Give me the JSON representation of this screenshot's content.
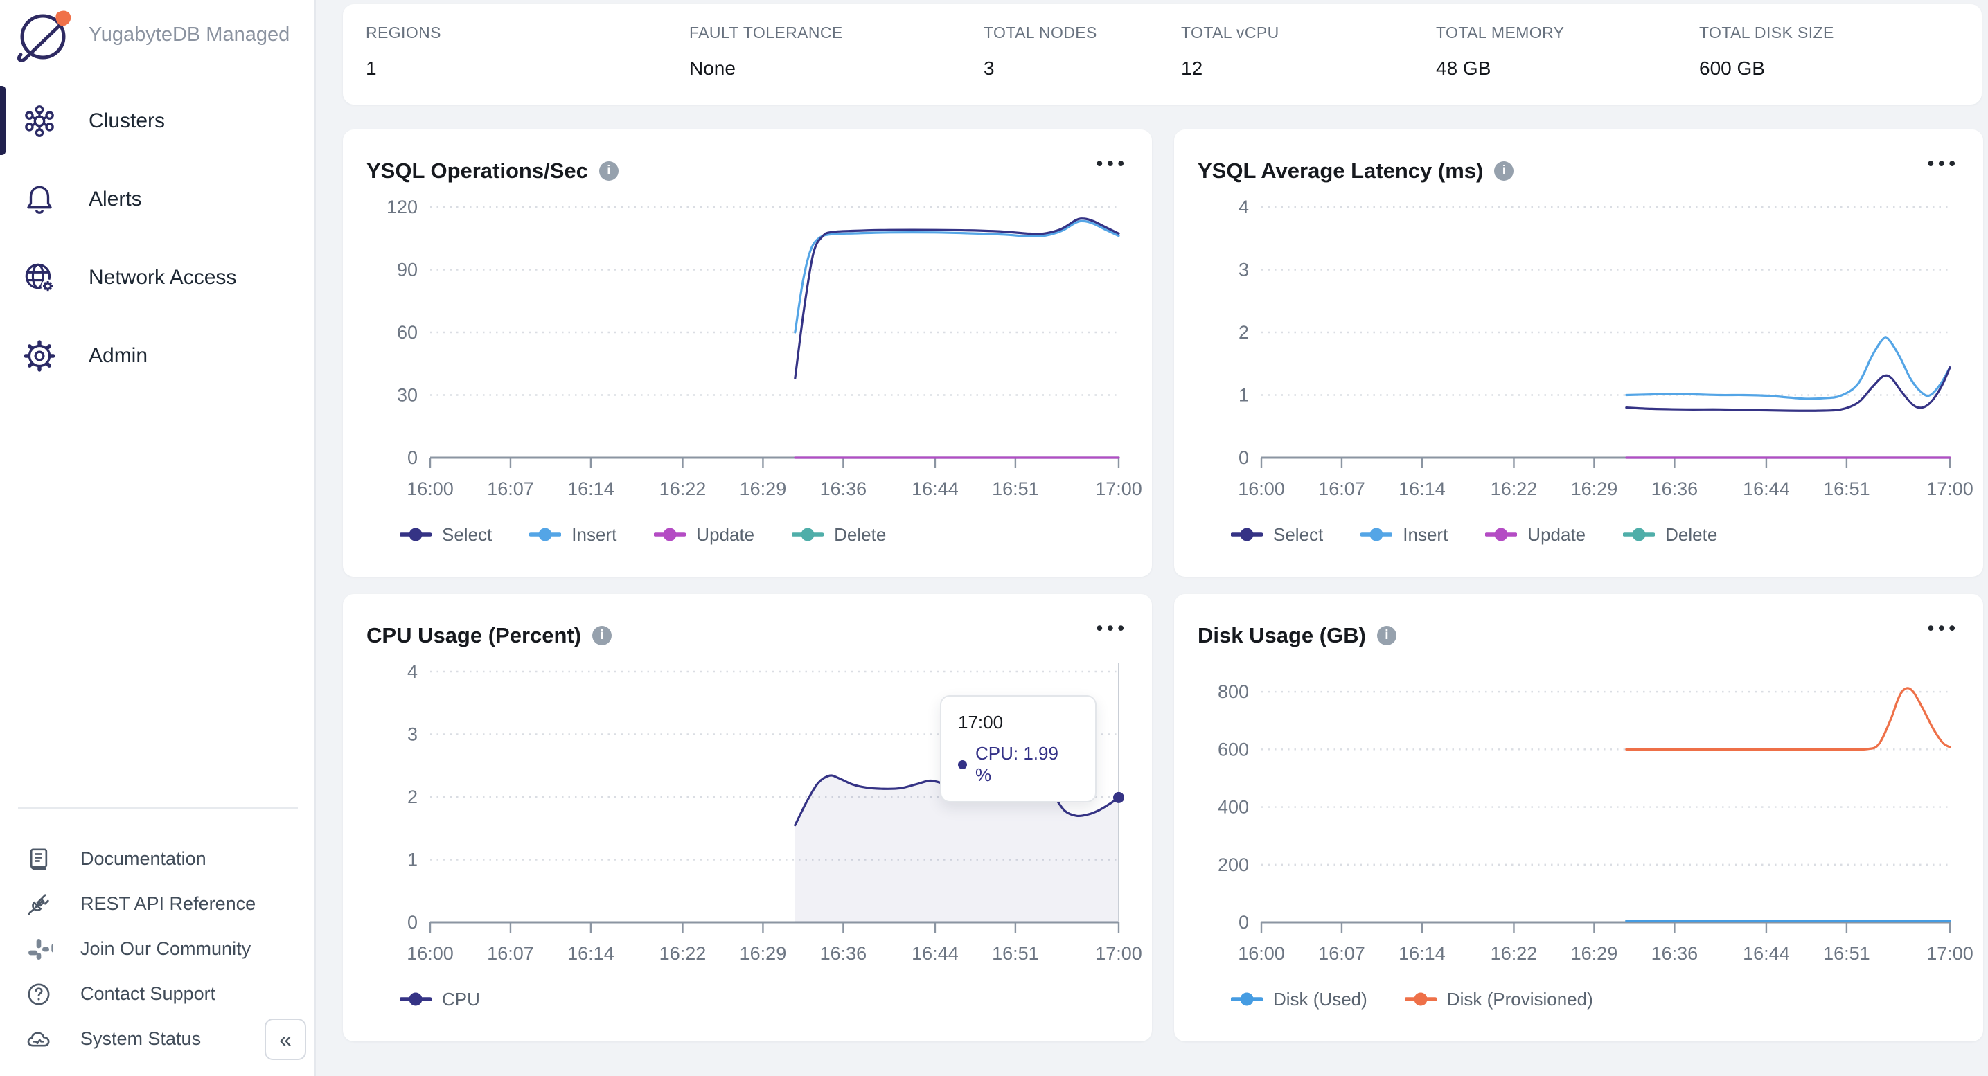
{
  "colors": {
    "navy": "#353385",
    "blue": "#54a5e6",
    "magenta": "#b44cc4",
    "teal": "#4faea9",
    "orange": "#ee7048",
    "disk_used_blue": "#459ce2",
    "sidebar_icon": "#2b2a66",
    "active_indicator": "#21214e",
    "axis": "#8b95a2",
    "grid": "#dadde3",
    "tick_text": "#6d7683"
  },
  "sidebar": {
    "brand": "YugabyteDB Managed",
    "nav": [
      {
        "label": "Clusters",
        "active": true
      },
      {
        "label": "Alerts",
        "active": false
      },
      {
        "label": "Network Access",
        "active": false
      },
      {
        "label": "Admin",
        "active": false
      }
    ],
    "footer_links": [
      {
        "label": "Documentation"
      },
      {
        "label": "REST API Reference"
      },
      {
        "label": "Join Our Community"
      },
      {
        "label": "Contact Support"
      },
      {
        "label": "System Status"
      }
    ],
    "collapse_glyph": "«"
  },
  "stats": [
    {
      "label": "REGIONS",
      "value": "1"
    },
    {
      "label": "FAULT TOLERANCE",
      "value": "None"
    },
    {
      "label": "TOTAL NODES",
      "value": "3"
    },
    {
      "label": "TOTAL vCPU",
      "value": "12"
    },
    {
      "label": "TOTAL MEMORY",
      "value": "48 GB"
    },
    {
      "label": "TOTAL DISK SIZE",
      "value": "600 GB"
    }
  ],
  "chart_data": [
    {
      "type": "line",
      "title": "YSQL Operations/Sec",
      "xlabel": "time",
      "x_range": [
        0,
        60
      ],
      "x_ticks": [
        {
          "t": 0,
          "label": "16:00"
        },
        {
          "t": 7,
          "label": "16:07"
        },
        {
          "t": 14,
          "label": "16:14"
        },
        {
          "t": 22,
          "label": "16:22"
        },
        {
          "t": 29,
          "label": "16:29"
        },
        {
          "t": 36,
          "label": "16:36"
        },
        {
          "t": 44,
          "label": "16:44"
        },
        {
          "t": 51,
          "label": "16:51"
        },
        {
          "t": 60,
          "label": "17:00"
        }
      ],
      "ylim": [
        0,
        120
      ],
      "yticks": [
        0,
        30,
        60,
        90,
        120
      ],
      "series": [
        {
          "name": "Delete",
          "color": "#4faea9",
          "points": [
            [
              31.8,
              0
            ],
            [
              60,
              0
            ]
          ]
        },
        {
          "name": "Update",
          "color": "#b44cc4",
          "points": [
            [
              31.8,
              0
            ],
            [
              60,
              0
            ]
          ]
        },
        {
          "name": "Insert",
          "color": "#54a5e6",
          "points": [
            [
              31.8,
              60
            ],
            [
              32.5,
              85
            ],
            [
              33.2,
              100
            ],
            [
              34,
              105.5
            ],
            [
              35,
              107
            ],
            [
              37,
              107.4
            ],
            [
              40,
              107.8
            ],
            [
              44,
              107.8
            ],
            [
              47,
              107.4
            ],
            [
              50,
              106.8
            ],
            [
              52,
              106
            ],
            [
              53.5,
              106.2
            ],
            [
              55,
              108.5
            ],
            [
              56.3,
              112.6
            ],
            [
              57,
              113.2
            ],
            [
              57.8,
              112
            ],
            [
              58.8,
              109.3
            ],
            [
              60,
              106.2
            ]
          ]
        },
        {
          "name": "Select",
          "color": "#353385",
          "points": [
            [
              31.8,
              38
            ],
            [
              32.6,
              72
            ],
            [
              33.4,
              98
            ],
            [
              34.2,
              106
            ],
            [
              35,
              108
            ],
            [
              37,
              108.6
            ],
            [
              40,
              109
            ],
            [
              44,
              109
            ],
            [
              47,
              108.8
            ],
            [
              50,
              108.2
            ],
            [
              52,
              107.3
            ],
            [
              53.5,
              107.3
            ],
            [
              55,
              109.5
            ],
            [
              56.3,
              113.8
            ],
            [
              57,
              114.4
            ],
            [
              57.8,
              113.2
            ],
            [
              58.8,
              110.5
            ],
            [
              60,
              107.3
            ]
          ]
        }
      ],
      "legend": [
        {
          "label": "Select",
          "color": "#353385"
        },
        {
          "label": "Insert",
          "color": "#54a5e6"
        },
        {
          "label": "Update",
          "color": "#b44cc4"
        },
        {
          "label": "Delete",
          "color": "#4faea9"
        }
      ]
    },
    {
      "type": "line",
      "title": "YSQL Average Latency (ms)",
      "xlabel": "time",
      "x_range": [
        0,
        60
      ],
      "x_ticks": [
        {
          "t": 0,
          "label": "16:00"
        },
        {
          "t": 7,
          "label": "16:07"
        },
        {
          "t": 14,
          "label": "16:14"
        },
        {
          "t": 22,
          "label": "16:22"
        },
        {
          "t": 29,
          "label": "16:29"
        },
        {
          "t": 36,
          "label": "16:36"
        },
        {
          "t": 44,
          "label": "16:44"
        },
        {
          "t": 51,
          "label": "16:51"
        },
        {
          "t": 60,
          "label": "17:00"
        }
      ],
      "ylim": [
        0,
        4
      ],
      "yticks": [
        0,
        1,
        2,
        3,
        4
      ],
      "series": [
        {
          "name": "Delete",
          "color": "#4faea9",
          "points": [
            [
              31.8,
              0
            ],
            [
              60,
              0
            ]
          ]
        },
        {
          "name": "Update",
          "color": "#b44cc4",
          "points": [
            [
              31.8,
              0
            ],
            [
              60,
              0
            ]
          ]
        },
        {
          "name": "Insert",
          "color": "#54a5e6",
          "points": [
            [
              31.8,
              1.0
            ],
            [
              34,
              1.01
            ],
            [
              36,
              1.02
            ],
            [
              38,
              1.01
            ],
            [
              40,
              1.0
            ],
            [
              42,
              1.0
            ],
            [
              44,
              0.99
            ],
            [
              46,
              0.96
            ],
            [
              47.5,
              0.94
            ],
            [
              49,
              0.95
            ],
            [
              50.5,
              0.99
            ],
            [
              52,
              1.18
            ],
            [
              53.2,
              1.62
            ],
            [
              54.1,
              1.88
            ],
            [
              54.6,
              1.9
            ],
            [
              55.6,
              1.62
            ],
            [
              56.6,
              1.25
            ],
            [
              57.6,
              1.03
            ],
            [
              58.3,
              1.0
            ],
            [
              59.2,
              1.18
            ],
            [
              60,
              1.44
            ]
          ]
        },
        {
          "name": "Select",
          "color": "#353385",
          "points": [
            [
              31.8,
              0.8
            ],
            [
              34,
              0.78
            ],
            [
              37,
              0.77
            ],
            [
              40,
              0.77
            ],
            [
              43,
              0.76
            ],
            [
              46,
              0.75
            ],
            [
              48.5,
              0.75
            ],
            [
              50.5,
              0.77
            ],
            [
              52,
              0.88
            ],
            [
              53.2,
              1.12
            ],
            [
              54.2,
              1.3
            ],
            [
              54.9,
              1.27
            ],
            [
              55.8,
              1.05
            ],
            [
              56.8,
              0.84
            ],
            [
              57.6,
              0.8
            ],
            [
              58.4,
              0.9
            ],
            [
              59.3,
              1.15
            ],
            [
              60,
              1.44
            ]
          ]
        }
      ],
      "legend": [
        {
          "label": "Select",
          "color": "#353385"
        },
        {
          "label": "Insert",
          "color": "#54a5e6"
        },
        {
          "label": "Update",
          "color": "#b44cc4"
        },
        {
          "label": "Delete",
          "color": "#4faea9"
        }
      ]
    },
    {
      "type": "line",
      "title": "CPU Usage (Percent)",
      "xlabel": "time",
      "x_range": [
        0,
        60
      ],
      "x_ticks": [
        {
          "t": 0,
          "label": "16:00"
        },
        {
          "t": 7,
          "label": "16:07"
        },
        {
          "t": 14,
          "label": "16:14"
        },
        {
          "t": 22,
          "label": "16:22"
        },
        {
          "t": 29,
          "label": "16:29"
        },
        {
          "t": 36,
          "label": "16:36"
        },
        {
          "t": 44,
          "label": "16:44"
        },
        {
          "t": 51,
          "label": "16:51"
        },
        {
          "t": 60,
          "label": "17:00"
        }
      ],
      "ylim": [
        0,
        4
      ],
      "yticks": [
        0,
        1,
        2,
        3,
        4
      ],
      "series": [
        {
          "name": "CPU",
          "color": "#353385",
          "area": true,
          "points": [
            [
              31.8,
              1.55
            ],
            [
              32.8,
              1.92
            ],
            [
              33.8,
              2.22
            ],
            [
              34.8,
              2.34
            ],
            [
              35.6,
              2.3
            ],
            [
              36.8,
              2.2
            ],
            [
              38,
              2.15
            ],
            [
              39.5,
              2.13
            ],
            [
              41,
              2.14
            ],
            [
              42.5,
              2.21
            ],
            [
              43.6,
              2.26
            ],
            [
              44.8,
              2.21
            ],
            [
              46,
              2.15
            ],
            [
              47.5,
              2.13
            ],
            [
              49,
              2.15
            ],
            [
              50.5,
              2.17
            ],
            [
              52,
              2.19
            ],
            [
              53.3,
              2.18
            ],
            [
              54.3,
              2.02
            ],
            [
              55.3,
              1.78
            ],
            [
              56.3,
              1.7
            ],
            [
              57.3,
              1.72
            ],
            [
              58.3,
              1.79
            ],
            [
              59.3,
              1.9
            ],
            [
              60,
              1.99
            ]
          ]
        }
      ],
      "crosshair": {
        "t": 60
      },
      "end_dot": {
        "t": 60,
        "v": 1.99,
        "color": "#353385"
      },
      "tooltip": {
        "time": "17:00",
        "label": "CPU: 1.99 %"
      },
      "legend": [
        {
          "label": "CPU",
          "color": "#353385"
        }
      ]
    },
    {
      "type": "line",
      "title": "Disk Usage (GB)",
      "xlabel": "time",
      "x_range": [
        0,
        60
      ],
      "x_ticks": [
        {
          "t": 0,
          "label": "16:00"
        },
        {
          "t": 7,
          "label": "16:07"
        },
        {
          "t": 14,
          "label": "16:14"
        },
        {
          "t": 22,
          "label": "16:22"
        },
        {
          "t": 29,
          "label": "16:29"
        },
        {
          "t": 36,
          "label": "16:36"
        },
        {
          "t": 44,
          "label": "16:44"
        },
        {
          "t": 51,
          "label": "16:51"
        },
        {
          "t": 60,
          "label": "17:00"
        }
      ],
      "ylim": [
        0,
        870
      ],
      "yticks": [
        0,
        200,
        400,
        600,
        800
      ],
      "series": [
        {
          "name": "Disk (Used)",
          "color": "#459ce2",
          "points": [
            [
              31.8,
              5
            ],
            [
              60,
              5
            ]
          ]
        },
        {
          "name": "Disk (Provisioned)",
          "color": "#ee7048",
          "points": [
            [
              31.8,
              600
            ],
            [
              36,
              600
            ],
            [
              40,
              600
            ],
            [
              44,
              600
            ],
            [
              48,
              600
            ],
            [
              51,
              600
            ],
            [
              52.8,
              601
            ],
            [
              53.8,
              618
            ],
            [
              54.8,
              700
            ],
            [
              55.6,
              785
            ],
            [
              56.2,
              812
            ],
            [
              56.8,
              800
            ],
            [
              57.6,
              745
            ],
            [
              58.6,
              668
            ],
            [
              59.4,
              622
            ],
            [
              60,
              608
            ]
          ]
        }
      ],
      "legend": [
        {
          "label": "Disk (Used)",
          "color": "#459ce2"
        },
        {
          "label": "Disk (Provisioned)",
          "color": "#ee7048"
        }
      ]
    }
  ]
}
